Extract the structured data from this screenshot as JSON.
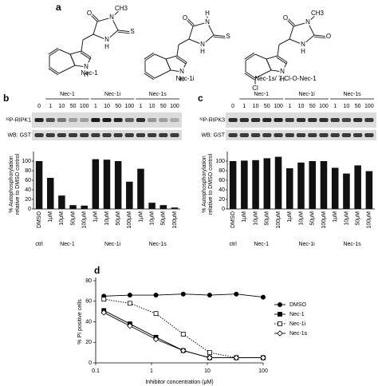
{
  "panel_labels": [
    "a",
    "b",
    "c",
    "d"
  ],
  "structures": [
    {
      "name": "Nec-1",
      "atoms": [
        "O",
        "N",
        "CH3",
        "S",
        "N",
        "H",
        "N",
        "H"
      ]
    },
    {
      "name": "Nec-1i",
      "atoms": [
        "O",
        "H",
        "N",
        "S",
        "N",
        "H",
        "N",
        "H"
      ]
    },
    {
      "name": "Nec-1s/ 7-Cl-O-Nec-1",
      "atoms": [
        "O",
        "N",
        "CH3",
        "O",
        "N",
        "H",
        "Cl",
        "N",
        "H"
      ]
    }
  ],
  "blots": [
    {
      "groups": [
        "Nec-1",
        "Nec-1i",
        "Nec-1s"
      ],
      "lanes": [
        "0",
        "1",
        "10",
        "50",
        "100",
        "1",
        "10",
        "50",
        "100",
        "1",
        "10",
        "50",
        "100"
      ],
      "rows": [
        "³²P-RIPK1",
        "WB: GST"
      ]
    },
    {
      "groups": [
        "Nec-1",
        "Nec-1i",
        "Nec-1s"
      ],
      "lanes": [
        "0",
        "1",
        "10",
        "50",
        "100",
        "1",
        "10",
        "50",
        "100",
        "1",
        "10",
        "50",
        "100"
      ],
      "rows": [
        "³²P-RIPK3",
        "WB: GST"
      ]
    }
  ],
  "chart_data": [
    {
      "type": "bar",
      "ylabel": [
        "% Autophosphorylation",
        "relative to DMSO control"
      ],
      "categories": [
        "DMSO",
        "1μM",
        "10μM",
        "50μM",
        "100μM",
        "1μM",
        "10μM",
        "50μM",
        "100μM",
        "1μM",
        "10μM",
        "50μM",
        "100μM"
      ],
      "group_labels": [
        "ctrl",
        "Nec-1",
        "Nec-1i",
        "Nec-1s"
      ],
      "values": [
        100,
        65,
        28,
        8,
        7,
        104,
        103,
        100,
        57,
        84,
        13,
        8,
        3
      ],
      "color": "#111111",
      "ylim": [
        0,
        120
      ],
      "yticks": [
        0,
        20,
        40,
        60,
        80,
        100
      ]
    },
    {
      "type": "bar",
      "ylabel": [
        "% Autophosphorylation",
        "relative to DMSO control"
      ],
      "categories": [
        "DMSO",
        "1μM",
        "10μM",
        "50μM",
        "100μM",
        "1μM",
        "10μM",
        "50μM",
        "100μM",
        "1μM",
        "10μM",
        "50μM",
        "100μM"
      ],
      "group_labels": [
        "ctrl",
        "Nec-1",
        "Nec-1i",
        "Nec-1s"
      ],
      "values": [
        100,
        101,
        102,
        106,
        109,
        85,
        97,
        100,
        100,
        86,
        74,
        91,
        79
      ],
      "color": "#111111",
      "ylim": [
        0,
        120
      ],
      "yticks": [
        0,
        20,
        40,
        60,
        80,
        100
      ]
    },
    {
      "type": "line",
      "xlabel": "Inhibitor concentration (μM)",
      "ylabel": "% PI positive cells",
      "x": [
        0.14,
        0.41,
        1.2,
        3.7,
        11,
        33,
        100
      ],
      "series": [
        {
          "name": "DMSO",
          "color": "#000000",
          "marker": "circle",
          "filled": true,
          "dash": "solid",
          "values": [
            65,
            66,
            66,
            67,
            66,
            67,
            64
          ]
        },
        {
          "name": "Nec-1",
          "color": "#000000",
          "marker": "square",
          "filled": true,
          "dash": "solid",
          "values": [
            51,
            38,
            25,
            12,
            5,
            5,
            5
          ]
        },
        {
          "name": "Nec-1i",
          "color": "#000000",
          "marker": "square",
          "filled": false,
          "dash": "dotted",
          "values": [
            62,
            58,
            48,
            28,
            10,
            5,
            5
          ]
        },
        {
          "name": "Nec-1s",
          "color": "#000000",
          "marker": "diamond",
          "filled": false,
          "dash": "solid",
          "values": [
            49,
            36,
            23,
            12,
            5,
            5,
            5
          ]
        }
      ],
      "xlim": [
        0.1,
        100
      ],
      "xticks": [
        0.1,
        1,
        10,
        100
      ],
      "xscale": "log",
      "ylim": [
        0,
        80
      ],
      "yticks": [
        0,
        20,
        40,
        60,
        80
      ],
      "legend": "right"
    }
  ]
}
